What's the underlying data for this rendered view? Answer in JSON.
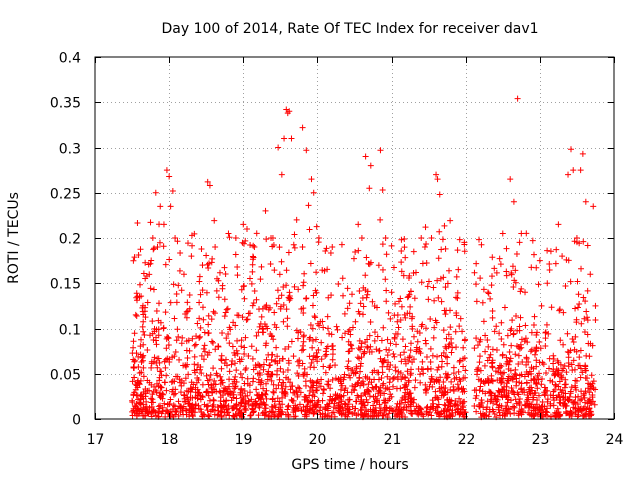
{
  "chart_data": {
    "type": "scatter",
    "title": "Day 100 of 2014, Rate Of TEC Index for receiver dav1",
    "xlabel": "GPS time / hours",
    "ylabel": "ROTI / TECUs",
    "xlim": [
      17,
      24
    ],
    "ylim": [
      0,
      0.4
    ],
    "xticks": [
      "17",
      "18",
      "19",
      "20",
      "21",
      "22",
      "23",
      "24"
    ],
    "xtick_values": [
      17,
      18,
      19,
      20,
      21,
      22,
      23,
      24
    ],
    "yticks": [
      "0",
      "0.05",
      "0.1",
      "0.15",
      "0.2",
      "0.25",
      "0.3",
      "0.35",
      "0.4"
    ],
    "ytick_values": [
      0,
      0.05,
      0.1,
      0.15,
      0.2,
      0.25,
      0.3,
      0.35,
      0.4
    ],
    "grid": true,
    "marker": "+",
    "color": "#ff0000",
    "x_data_range": [
      17.5,
      23.75
    ],
    "gap": [
      22.0,
      22.1
    ],
    "series": [
      {
        "name": "ROTI",
        "points": [
          [
            17.55,
            0.115
          ],
          [
            17.6,
            0.135
          ],
          [
            17.65,
            0.07
          ],
          [
            17.7,
            0.158
          ],
          [
            17.78,
            0.2
          ],
          [
            17.82,
            0.25
          ],
          [
            17.88,
            0.235
          ],
          [
            17.93,
            0.215
          ],
          [
            17.97,
            0.275
          ],
          [
            18.0,
            0.268
          ],
          [
            18.02,
            0.235
          ],
          [
            18.05,
            0.252
          ],
          [
            18.08,
            0.2
          ],
          [
            18.2,
            0.16
          ],
          [
            18.3,
            0.18
          ],
          [
            18.45,
            0.17
          ],
          [
            18.52,
            0.262
          ],
          [
            18.55,
            0.258
          ],
          [
            18.62,
            0.19
          ],
          [
            18.8,
            0.205
          ],
          [
            18.9,
            0.2
          ],
          [
            19.0,
            0.215
          ],
          [
            19.05,
            0.21
          ],
          [
            19.15,
            0.19
          ],
          [
            19.3,
            0.23
          ],
          [
            19.4,
            0.2
          ],
          [
            19.47,
            0.3
          ],
          [
            19.52,
            0.27
          ],
          [
            19.55,
            0.31
          ],
          [
            19.58,
            0.342
          ],
          [
            19.6,
            0.338
          ],
          [
            19.62,
            0.34
          ],
          [
            19.65,
            0.31
          ],
          [
            19.72,
            0.22
          ],
          [
            19.8,
            0.322
          ],
          [
            19.85,
            0.297
          ],
          [
            19.88,
            0.236
          ],
          [
            19.92,
            0.265
          ],
          [
            19.95,
            0.25
          ],
          [
            20.02,
            0.2
          ],
          [
            20.2,
            0.19
          ],
          [
            20.55,
            0.215
          ],
          [
            20.6,
            0.2
          ],
          [
            20.65,
            0.29
          ],
          [
            20.7,
            0.255
          ],
          [
            20.72,
            0.28
          ],
          [
            20.85,
            0.297
          ],
          [
            20.88,
            0.253
          ],
          [
            20.92,
            0.2
          ],
          [
            21.0,
            0.14
          ],
          [
            21.1,
            0.13
          ],
          [
            21.3,
            0.185
          ],
          [
            21.4,
            0.2
          ],
          [
            21.45,
            0.19
          ],
          [
            21.6,
            0.27
          ],
          [
            21.65,
            0.248
          ],
          [
            21.62,
            0.265
          ],
          [
            21.9,
            0.165
          ],
          [
            22.15,
            0.13
          ],
          [
            22.3,
            0.14
          ],
          [
            22.5,
            0.205
          ],
          [
            22.6,
            0.265
          ],
          [
            22.65,
            0.24
          ],
          [
            22.7,
            0.354
          ],
          [
            22.75,
            0.205
          ],
          [
            22.8,
            0.14
          ],
          [
            23.0,
            0.175
          ],
          [
            23.1,
            0.15
          ],
          [
            23.25,
            0.215
          ],
          [
            23.3,
            0.18
          ],
          [
            23.38,
            0.27
          ],
          [
            23.42,
            0.298
          ],
          [
            23.45,
            0.275
          ],
          [
            23.5,
            0.2
          ],
          [
            23.55,
            0.275
          ],
          [
            23.58,
            0.293
          ],
          [
            23.62,
            0.24
          ],
          [
            23.68,
            0.16
          ],
          [
            23.72,
            0.235
          ],
          [
            23.75,
            0.125
          ]
        ]
      }
    ]
  }
}
